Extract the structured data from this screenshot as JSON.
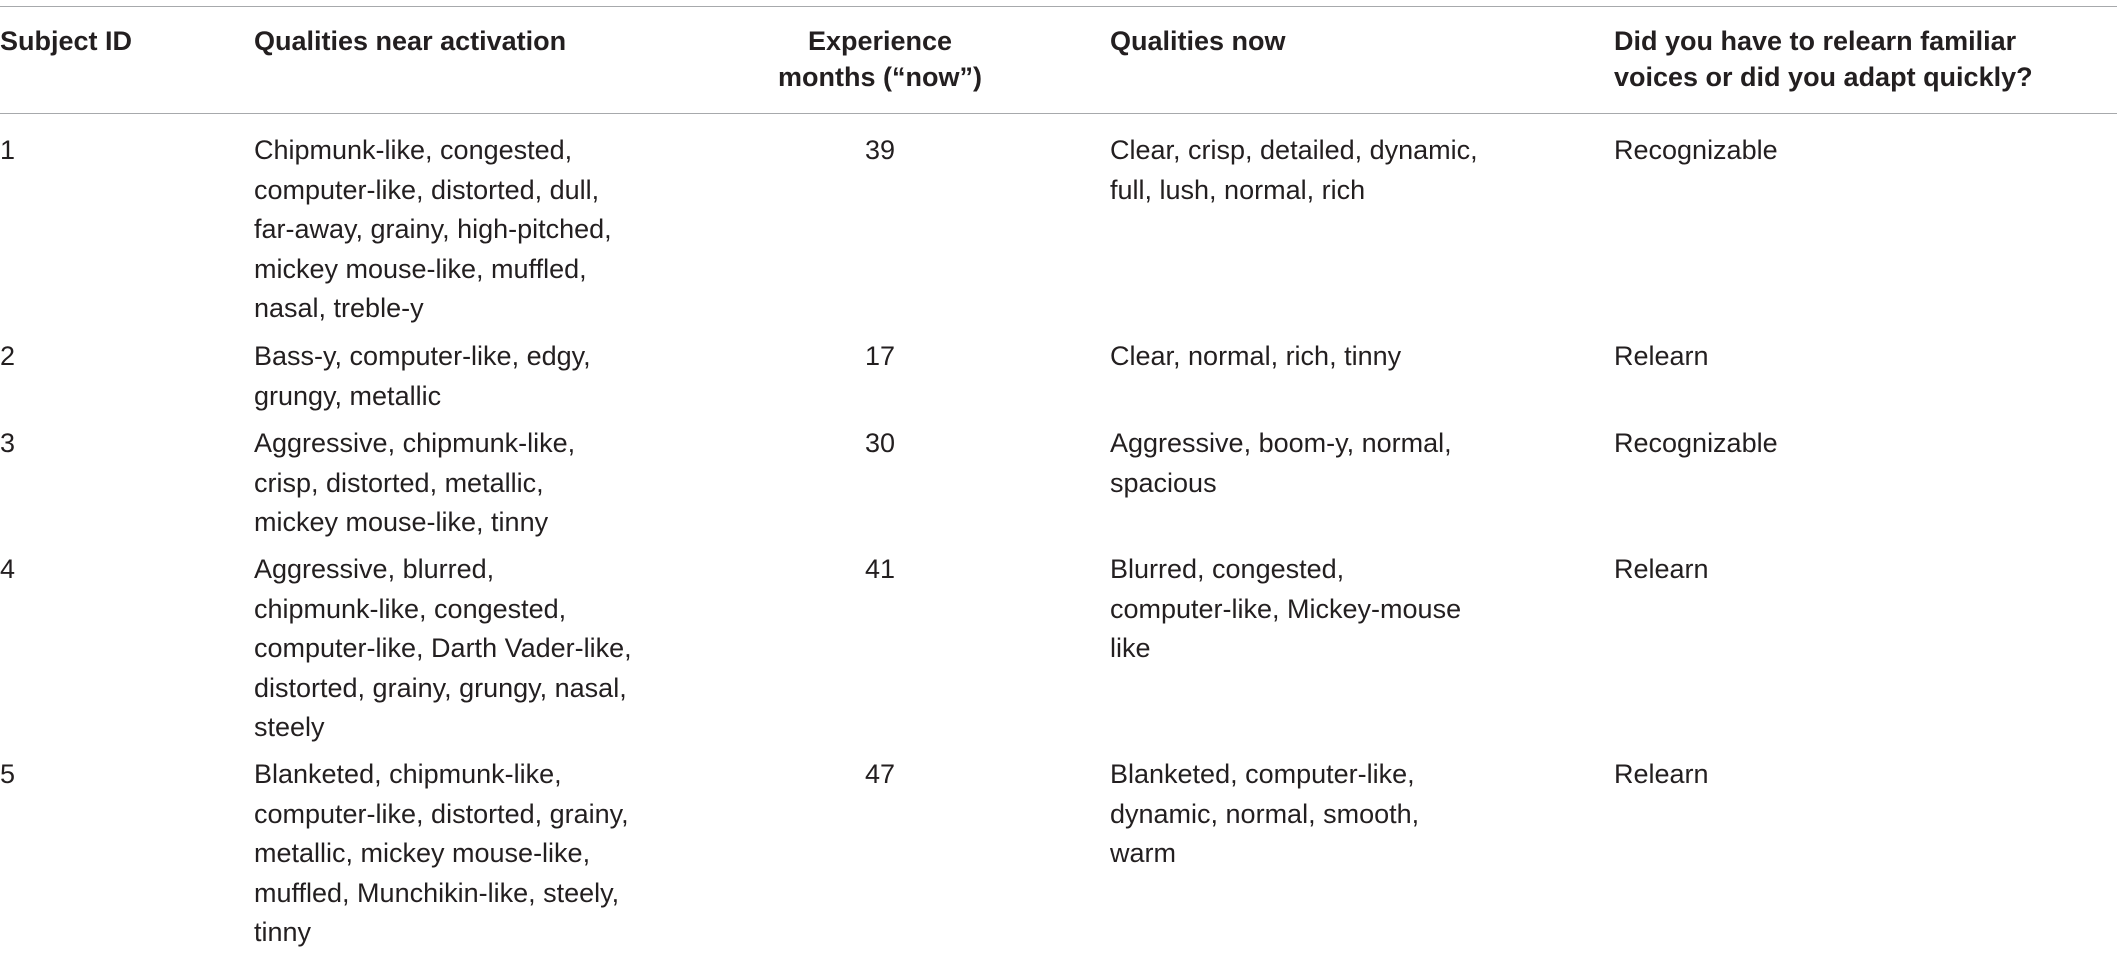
{
  "table": {
    "headers": [
      "Subject ID",
      "Qualities near activation",
      "Experience\nmonths (“now”)",
      "Qualities now",
      "Did you have to relearn familiar\nvoices or did you adapt quickly?"
    ],
    "rows": [
      {
        "subject_id": "1",
        "qualities_near_activation": "Chipmunk-like, congested,\ncomputer-like, distorted, dull,\nfar-away, grainy, high-pitched,\nmickey mouse-like, muffled,\nnasal, treble-y",
        "experience_months": "39",
        "qualities_now": "Clear, crisp, detailed, dynamic,\nfull, lush, normal, rich",
        "relearn_or_adapt": "Recognizable"
      },
      {
        "subject_id": "2",
        "qualities_near_activation": "Bass-y, computer-like, edgy,\ngrungy, metallic",
        "experience_months": "17",
        "qualities_now": "Clear, normal, rich, tinny",
        "relearn_or_adapt": "Relearn"
      },
      {
        "subject_id": "3",
        "qualities_near_activation": "Aggressive, chipmunk-like,\ncrisp, distorted, metallic,\nmickey mouse-like, tinny",
        "experience_months": "30",
        "qualities_now": "Aggressive, boom-y, normal,\nspacious",
        "relearn_or_adapt": "Recognizable"
      },
      {
        "subject_id": "4",
        "qualities_near_activation": "Aggressive, blurred,\nchipmunk-like, congested,\ncomputer-like, Darth Vader-like,\ndistorted, grainy, grungy, nasal,\nsteely",
        "experience_months": "41",
        "qualities_now": "Blurred, congested,\ncomputer-like, Mickey-mouse\nlike",
        "relearn_or_adapt": "Relearn"
      },
      {
        "subject_id": "5",
        "qualities_near_activation": "Blanketed, chipmunk-like,\ncomputer-like, distorted, grainy,\nmetallic, mickey mouse-like,\nmuffled, Munchikin-like, steely,\ntinny",
        "experience_months": "47",
        "qualities_now": "Blanketed, computer-like,\ndynamic, normal, smooth,\nwarm",
        "relearn_or_adapt": "Relearn"
      }
    ]
  }
}
